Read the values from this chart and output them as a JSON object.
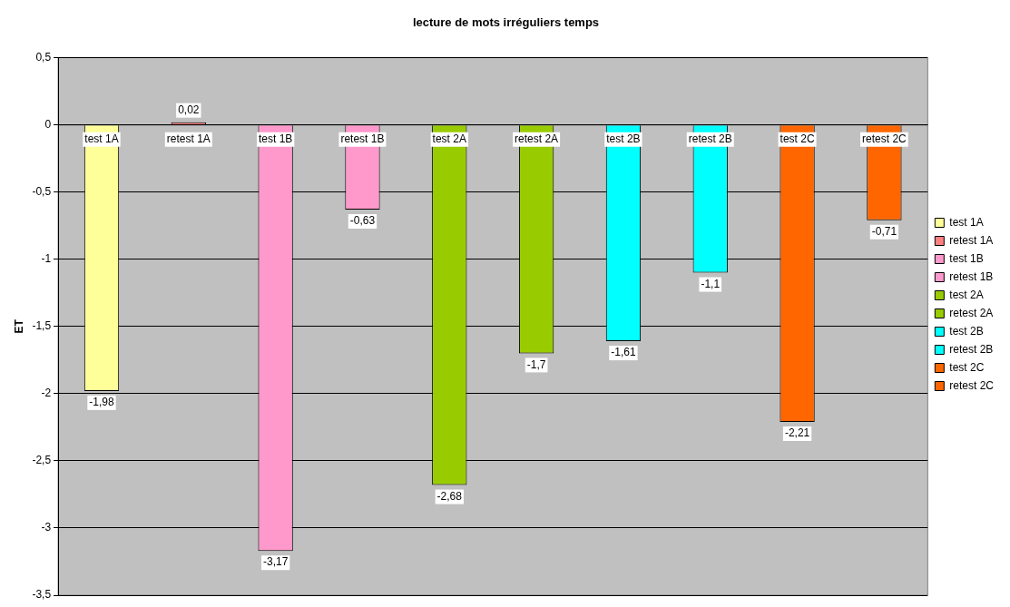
{
  "chart_data": {
    "type": "bar",
    "title": "lecture de mots irréguliers temps",
    "ylabel": "ET",
    "categories": [
      "test 1A",
      "retest 1A",
      "test 1B",
      "retest 1B",
      "test 2A",
      "retest 2A",
      "test 2B",
      "retest 2B",
      "test 2C",
      "retest 2C"
    ],
    "series": [
      {
        "name": "test 1A",
        "color": "#ffff99",
        "values": [
          -1.98,
          null,
          null,
          null,
          null,
          null,
          null,
          null,
          null,
          null
        ],
        "value_labels": [
          "-1,98",
          null,
          null,
          null,
          null,
          null,
          null,
          null,
          null,
          null
        ]
      },
      {
        "name": "retest 1A",
        "color": "#ff8080",
        "values": [
          null,
          0.02,
          null,
          null,
          null,
          null,
          null,
          null,
          null,
          null
        ],
        "value_labels": [
          null,
          "0,02",
          null,
          null,
          null,
          null,
          null,
          null,
          null,
          null
        ]
      },
      {
        "name": "test 1B",
        "color": "#ff99cc",
        "values": [
          null,
          null,
          -3.17,
          null,
          null,
          null,
          null,
          null,
          null,
          null
        ],
        "value_labels": [
          null,
          null,
          "-3,17",
          null,
          null,
          null,
          null,
          null,
          null,
          null
        ]
      },
      {
        "name": "retest 1B",
        "color": "#ff99cc",
        "values": [
          null,
          null,
          null,
          -0.63,
          null,
          null,
          null,
          null,
          null,
          null
        ],
        "value_labels": [
          null,
          null,
          null,
          "-0,63",
          null,
          null,
          null,
          null,
          null,
          null
        ]
      },
      {
        "name": "test 2A",
        "color": "#99cc00",
        "values": [
          null,
          null,
          null,
          null,
          -2.68,
          null,
          null,
          null,
          null,
          null
        ],
        "value_labels": [
          null,
          null,
          null,
          null,
          "-2,68",
          null,
          null,
          null,
          null,
          null
        ]
      },
      {
        "name": "retest 2A",
        "color": "#99cc00",
        "values": [
          null,
          null,
          null,
          null,
          null,
          -1.7,
          null,
          null,
          null,
          null
        ],
        "value_labels": [
          null,
          null,
          null,
          null,
          null,
          "-1,7",
          null,
          null,
          null,
          null
        ]
      },
      {
        "name": "test 2B",
        "color": "#00ffff",
        "values": [
          null,
          null,
          null,
          null,
          null,
          null,
          -1.61,
          null,
          null,
          null
        ],
        "value_labels": [
          null,
          null,
          null,
          null,
          null,
          null,
          "-1,61",
          null,
          null,
          null
        ]
      },
      {
        "name": "retest 2B",
        "color": "#00ffff",
        "values": [
          null,
          null,
          null,
          null,
          null,
          null,
          null,
          -1.1,
          null,
          null
        ],
        "value_labels": [
          null,
          null,
          null,
          null,
          null,
          null,
          null,
          "-1,1",
          null,
          null
        ]
      },
      {
        "name": "test 2C",
        "color": "#ff6600",
        "values": [
          null,
          null,
          null,
          null,
          null,
          null,
          null,
          null,
          -2.21,
          null
        ],
        "value_labels": [
          null,
          null,
          null,
          null,
          null,
          null,
          null,
          null,
          "-2,21",
          null
        ]
      },
      {
        "name": "retest 2C",
        "color": "#ff6600",
        "values": [
          null,
          null,
          null,
          null,
          null,
          null,
          null,
          null,
          null,
          -0.71
        ],
        "value_labels": [
          null,
          null,
          null,
          null,
          null,
          null,
          null,
          null,
          null,
          "-0,71"
        ]
      }
    ],
    "ylim": [
      -3.5,
      0.5
    ],
    "yticks": [
      {
        "value": -3.5,
        "label": "-3,5"
      },
      -3,
      {
        "value": -2.5,
        "label": "-2,5"
      },
      -2,
      {
        "value": -1.5,
        "label": "-1,5"
      },
      -1,
      {
        "value": -0.5,
        "label": "-0,5"
      },
      0,
      {
        "value": 0.5,
        "label": "0,5"
      }
    ],
    "grid": "y",
    "legend": "right"
  }
}
